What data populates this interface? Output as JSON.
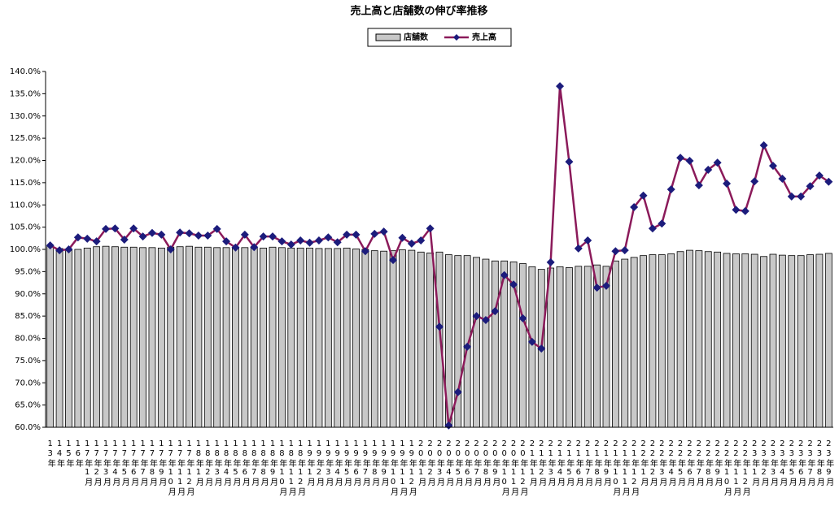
{
  "chart_data": {
    "type": "combo",
    "title": "売上高と店舗数の伸び率推移",
    "categories": [
      "13年",
      "14年",
      "15年",
      "16年",
      "17年1月",
      "17年2月",
      "17年3月",
      "17年4月",
      "17年5月",
      "17年6月",
      "17年7月",
      "17年8月",
      "17年9月",
      "17年10月",
      "17年11月",
      "17年12月",
      "18年1月",
      "18年2月",
      "18年3月",
      "18年4月",
      "18年5月",
      "18年6月",
      "18年7月",
      "18年8月",
      "18年9月",
      "18年10月",
      "18年11月",
      "18年12月",
      "19年1月",
      "19年2月",
      "19年3月",
      "19年4月",
      "19年5月",
      "19年6月",
      "19年7月",
      "19年8月",
      "19年9月",
      "19年10月",
      "19年11月",
      "19年12月",
      "20年1月",
      "20年2月",
      "20年3月",
      "20年4月",
      "20年5月",
      "20年6月",
      "20年7月",
      "20年8月",
      "20年9月",
      "20年10月",
      "20年11月",
      "20年12月",
      "21年1月",
      "21年2月",
      "21年3月",
      "21年4月",
      "21年5月",
      "21年6月",
      "21年7月",
      "21年8月",
      "21年9月",
      "21年10月",
      "21年11月",
      "21年12月",
      "22年1月",
      "22年2月",
      "22年3月",
      "22年4月",
      "22年5月",
      "22年6月",
      "22年7月",
      "22年8月",
      "22年9月",
      "22年10月",
      "22年11月",
      "22年12月",
      "23年1月",
      "23年2月",
      "23年3月",
      "23年4月",
      "23年5月",
      "23年6月",
      "23年7月",
      "23年8月",
      "23年9月"
    ],
    "series": [
      {
        "name": "店舗数",
        "type": "bar",
        "color": "#c8c8c8",
        "values": [
          100.8,
          100.2,
          99.9,
          100.0,
          100.3,
          100.6,
          100.7,
          100.6,
          100.5,
          100.5,
          100.4,
          100.4,
          100.3,
          100.5,
          100.6,
          100.7,
          100.5,
          100.5,
          100.4,
          100.4,
          100.3,
          100.4,
          100.4,
          100.3,
          100.5,
          100.4,
          100.3,
          100.3,
          100.3,
          100.2,
          100.2,
          100.2,
          100.3,
          100.1,
          100.0,
          99.7,
          99.6,
          99.7,
          99.9,
          99.8,
          99.4,
          99.2,
          99.4,
          98.8,
          98.6,
          98.6,
          98.2,
          97.8,
          97.4,
          97.4,
          97.2,
          96.8,
          96.1,
          95.5,
          95.8,
          96.1,
          95.9,
          96.2,
          96.2,
          96.5,
          96.2,
          97.4,
          97.8,
          98.2,
          98.6,
          98.8,
          98.8,
          99.0,
          99.5,
          99.8,
          99.7,
          99.5,
          99.4,
          99.1,
          99.0,
          99.0,
          98.9,
          98.4,
          98.9,
          98.7,
          98.6,
          98.6,
          98.8,
          98.9,
          99.1
        ]
      },
      {
        "name": "売上高",
        "type": "line",
        "color": "#8b1a5a",
        "marker_color": "#1c1c7c",
        "values": [
          100.9,
          99.8,
          100.0,
          102.7,
          102.4,
          101.8,
          104.6,
          104.7,
          102.2,
          104.7,
          102.9,
          103.7,
          103.3,
          100.0,
          103.8,
          103.6,
          103.1,
          103.1,
          104.6,
          101.8,
          100.4,
          103.3,
          100.5,
          102.9,
          102.9,
          101.8,
          101.1,
          102.0,
          101.5,
          102.0,
          102.7,
          101.6,
          103.3,
          103.3,
          99.6,
          103.5,
          104.0,
          97.6,
          102.6,
          101.3,
          102.0,
          104.7,
          82.6,
          60.4,
          67.9,
          78.1,
          85.0,
          84.1,
          86.1,
          94.2,
          92.1,
          84.5,
          79.2,
          77.7,
          97.1,
          136.7,
          119.7,
          100.2,
          102.0,
          91.4,
          91.8,
          99.6,
          99.8,
          109.5,
          112.1,
          104.7,
          105.8,
          113.5,
          120.6,
          119.9,
          114.4,
          117.9,
          119.5,
          114.8,
          108.9,
          108.6,
          115.3,
          123.4,
          118.8,
          115.9,
          111.9,
          111.9,
          114.2,
          116.6,
          115.2
        ]
      }
    ],
    "ylim": [
      60,
      140
    ],
    "yticks": [
      {
        "value": 60,
        "label": "60.0%"
      },
      {
        "value": 65,
        "label": "65.0%"
      },
      {
        "value": 70,
        "label": "70.0%"
      },
      {
        "value": 75,
        "label": "75.0%"
      },
      {
        "value": 80,
        "label": "80.0%"
      },
      {
        "value": 85,
        "label": "85.0%"
      },
      {
        "value": 90,
        "label": "90.0%"
      },
      {
        "value": 95,
        "label": "95.0%"
      },
      {
        "value": 100,
        "label": "100.0%"
      },
      {
        "value": 105,
        "label": "105.0%"
      },
      {
        "value": 110,
        "label": "110.0%"
      },
      {
        "value": 115,
        "label": "115.0%"
      },
      {
        "value": 120,
        "label": "120.0%"
      },
      {
        "value": 125,
        "label": "125.0%"
      },
      {
        "value": 130,
        "label": "130.0%"
      },
      {
        "value": 135,
        "label": "135.0%"
      },
      {
        "value": 140,
        "label": "140.0%"
      }
    ],
    "grid": false,
    "legend": "top"
  }
}
